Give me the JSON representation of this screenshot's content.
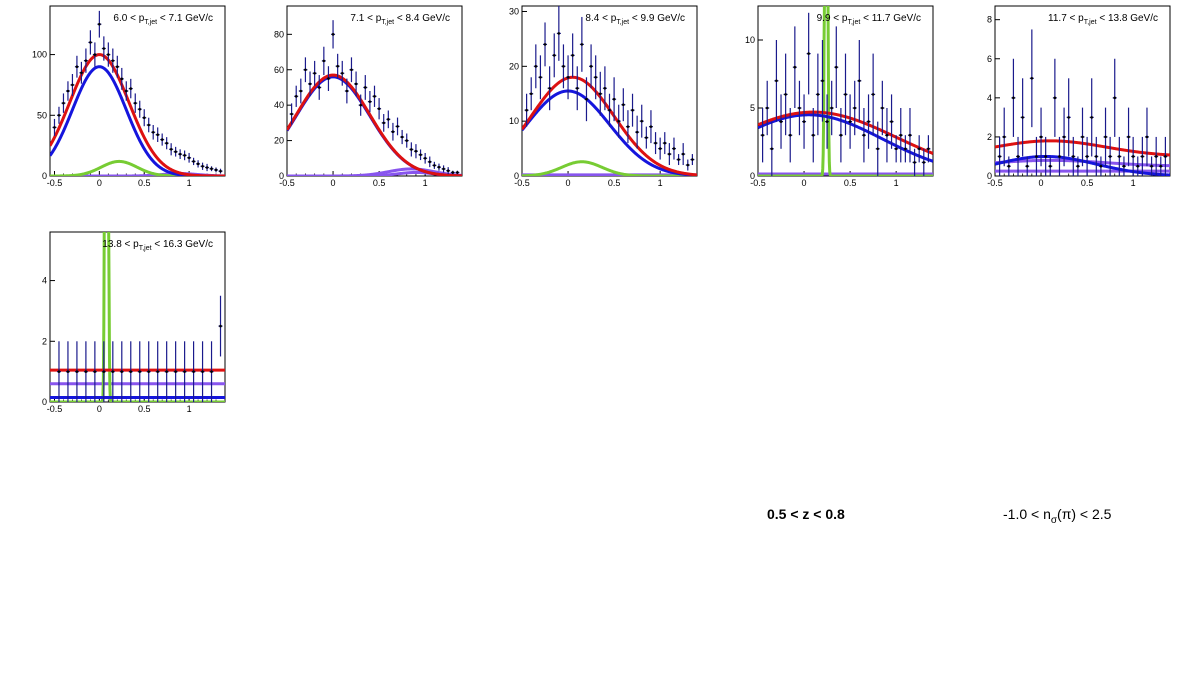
{
  "colors": {
    "data": "#1a1a8c",
    "total": "#dd1111",
    "blue": "#1515dd",
    "green": "#77cc33",
    "violet": "#8855ee",
    "axis": "#000000"
  },
  "footer": {
    "z_cut": "0.5 < z < 0.8",
    "nsigma_pre": "-1.0 < n",
    "nsigma_sub": "σ",
    "nsigma_post": "(π) < 2.5"
  },
  "chart_data": [
    {
      "type": "line",
      "title": {
        "pre": "6.0 < p",
        "sub": "T,jet",
        "post": " < 7.1 GeV/c"
      },
      "xlim": [
        -0.55,
        1.4
      ],
      "ylim": [
        0,
        140
      ],
      "xticks": [
        -0.5,
        0,
        0.5,
        1
      ],
      "xtick_labels": [
        "-0.5",
        "0",
        "0.5",
        "1"
      ],
      "yticks": [
        0,
        50,
        100
      ],
      "ytick_labels": [
        "0",
        "50",
        "100"
      ],
      "series": [
        {
          "role": "data",
          "x": [
            -0.5,
            -0.45,
            -0.4,
            -0.35,
            -0.3,
            -0.25,
            -0.2,
            -0.15,
            -0.1,
            -0.05,
            0,
            0.05,
            0.1,
            0.15,
            0.2,
            0.25,
            0.3,
            0.35,
            0.4,
            0.45,
            0.5,
            0.55,
            0.6,
            0.65,
            0.7,
            0.75,
            0.8,
            0.85,
            0.9,
            0.95,
            1,
            1.05,
            1.1,
            1.15,
            1.2,
            1.25,
            1.3,
            1.35
          ],
          "y": [
            40,
            50,
            60,
            70,
            75,
            90,
            85,
            95,
            110,
            100,
            125,
            105,
            100,
            95,
            90,
            80,
            70,
            72,
            60,
            55,
            48,
            42,
            36,
            34,
            30,
            27,
            22,
            20,
            18,
            17,
            15,
            12,
            10,
            8,
            7,
            6,
            5,
            4
          ],
          "err": [
            7,
            7,
            8,
            8,
            9,
            9,
            9,
            10,
            10,
            10,
            11,
            10,
            10,
            10,
            9,
            9,
            8,
            8,
            8,
            7,
            7,
            6,
            6,
            6,
            5,
            5,
            5,
            4,
            4,
            4,
            4,
            3,
            3,
            3,
            3,
            2,
            2,
            2
          ]
        },
        {
          "role": "total",
          "gauss": [
            [
              100,
              0.0,
              0.33
            ]
          ],
          "const": 0
        },
        {
          "role": "blue",
          "gauss": [
            [
              90,
              0.0,
              0.3
            ]
          ],
          "const": 0
        },
        {
          "role": "green",
          "gauss": [
            [
              12,
              0.22,
              0.2
            ]
          ],
          "const": 0
        },
        {
          "role": "violet",
          "gauss": [
            [
              2,
              0.9,
              0.2
            ]
          ],
          "const": 0
        }
      ]
    },
    {
      "type": "line",
      "title": {
        "pre": "7.1 < p",
        "sub": "T,jet",
        "post": " < 8.4 GeV/c"
      },
      "xlim": [
        -0.5,
        1.4
      ],
      "ylim": [
        0,
        96
      ],
      "xticks": [
        -0.5,
        0,
        0.5,
        1
      ],
      "xtick_labels": [
        "-0.5",
        "0",
        "0.5",
        "1"
      ],
      "yticks": [
        0,
        20,
        40,
        60,
        80
      ],
      "ytick_labels": [
        "0",
        "20",
        "40",
        "60",
        "80"
      ],
      "series": [
        {
          "role": "data",
          "x": [
            -0.45,
            -0.4,
            -0.35,
            -0.3,
            -0.25,
            -0.2,
            -0.15,
            -0.1,
            -0.05,
            0,
            0.05,
            0.1,
            0.15,
            0.2,
            0.25,
            0.3,
            0.35,
            0.4,
            0.45,
            0.5,
            0.55,
            0.6,
            0.65,
            0.7,
            0.75,
            0.8,
            0.85,
            0.9,
            0.95,
            1,
            1.05,
            1.1,
            1.15,
            1.2,
            1.25,
            1.3,
            1.35
          ],
          "y": [
            35,
            45,
            48,
            60,
            52,
            58,
            50,
            65,
            55,
            80,
            62,
            58,
            48,
            60,
            52,
            40,
            50,
            42,
            45,
            38,
            30,
            32,
            25,
            28,
            22,
            20,
            15,
            14,
            12,
            10,
            8,
            6,
            5,
            4,
            3,
            2,
            2
          ],
          "err": [
            6,
            6,
            7,
            7,
            7,
            7,
            7,
            8,
            7,
            8,
            7,
            7,
            7,
            7,
            7,
            6,
            7,
            6,
            6,
            6,
            5,
            5,
            5,
            5,
            4,
            4,
            4,
            4,
            3,
            3,
            3,
            2,
            2,
            2,
            2,
            1,
            1
          ]
        },
        {
          "role": "total",
          "gauss": [
            [
              57,
              0.0,
              0.4
            ]
          ],
          "const": 0
        },
        {
          "role": "blue",
          "gauss": [
            [
              56,
              0.0,
              0.4
            ]
          ],
          "const": 0
        },
        {
          "role": "violet",
          "gauss": [
            [
              4,
              0.85,
              0.25
            ]
          ],
          "const": 0
        },
        {
          "role": "violet2",
          "gauss": [
            [
              2,
              0.9,
              0.2
            ]
          ],
          "const": 0
        }
      ]
    },
    {
      "type": "line",
      "title": {
        "pre": "8.4 < p",
        "sub": "T,jet",
        "post": " < 9.9 GeV/c"
      },
      "xlim": [
        -0.5,
        1.4
      ],
      "ylim": [
        0,
        31
      ],
      "xticks": [
        -0.5,
        0,
        0.5,
        1
      ],
      "xtick_labels": [
        "-0.5",
        "0",
        "0.5",
        "1"
      ],
      "yticks": [
        0,
        10,
        20,
        30
      ],
      "ytick_labels": [
        "0",
        "10",
        "20",
        "30"
      ],
      "series": [
        {
          "role": "data",
          "x": [
            -0.45,
            -0.4,
            -0.35,
            -0.3,
            -0.25,
            -0.2,
            -0.15,
            -0.1,
            -0.05,
            0,
            0.05,
            0.1,
            0.15,
            0.2,
            0.25,
            0.3,
            0.35,
            0.4,
            0.45,
            0.5,
            0.55,
            0.6,
            0.65,
            0.7,
            0.75,
            0.8,
            0.85,
            0.9,
            0.95,
            1,
            1.05,
            1.1,
            1.15,
            1.2,
            1.25,
            1.3,
            1.35
          ],
          "y": [
            12,
            15,
            20,
            18,
            24,
            16,
            22,
            26,
            20,
            18,
            22,
            16,
            24,
            14,
            20,
            18,
            15,
            16,
            12,
            14,
            10,
            13,
            9,
            12,
            8,
            10,
            7,
            9,
            6,
            5,
            6,
            4,
            5,
            3,
            4,
            2,
            3
          ],
          "err": [
            3,
            3,
            4,
            4,
            4,
            4,
            4,
            5,
            4,
            4,
            4,
            4,
            5,
            4,
            4,
            4,
            4,
            4,
            3,
            4,
            3,
            3,
            3,
            3,
            3,
            3,
            2,
            3,
            2,
            2,
            2,
            2,
            2,
            1,
            2,
            1,
            1
          ]
        },
        {
          "role": "total",
          "gauss": [
            [
              18,
              0.05,
              0.45
            ]
          ],
          "const": 0
        },
        {
          "role": "blue",
          "gauss": [
            [
              15.5,
              0.0,
              0.45
            ]
          ],
          "const": 0
        },
        {
          "role": "green",
          "gauss": [
            [
              2.6,
              0.15,
              0.22
            ]
          ],
          "const": 0
        },
        {
          "role": "violet",
          "gauss": [],
          "const": 0.2
        }
      ]
    },
    {
      "type": "line",
      "title": {
        "pre": "9.9 < p",
        "sub": "T,jet",
        "post": " < 11.7 GeV/c"
      },
      "xlim": [
        -0.5,
        1.4
      ],
      "ylim": [
        0,
        12.5
      ],
      "xticks": [
        -0.5,
        0,
        0.5,
        1
      ],
      "xtick_labels": [
        "-0.5",
        "0",
        "0.5",
        "1"
      ],
      "yticks": [
        0,
        5,
        10
      ],
      "ytick_labels": [
        "0",
        "5",
        "10"
      ],
      "series": [
        {
          "role": "data",
          "x": [
            -0.45,
            -0.4,
            -0.35,
            -0.3,
            -0.25,
            -0.2,
            -0.15,
            -0.1,
            -0.05,
            0,
            0.05,
            0.1,
            0.15,
            0.2,
            0.25,
            0.3,
            0.35,
            0.4,
            0.45,
            0.5,
            0.55,
            0.6,
            0.65,
            0.7,
            0.75,
            0.8,
            0.85,
            0.9,
            0.95,
            1,
            1.05,
            1.1,
            1.15,
            1.2,
            1.25,
            1.3,
            1.35
          ],
          "y": [
            3,
            5,
            2,
            7,
            4,
            6,
            3,
            8,
            5,
            4,
            9,
            3,
            6,
            7,
            4,
            5,
            8,
            3,
            6,
            4,
            5,
            7,
            3,
            4,
            6,
            2,
            5,
            3,
            4,
            2,
            3,
            2,
            3,
            1,
            2,
            1,
            2
          ],
          "err": [
            2,
            2,
            2,
            3,
            2,
            3,
            2,
            3,
            2,
            2,
            3,
            2,
            3,
            3,
            2,
            2,
            3,
            2,
            3,
            2,
            2,
            3,
            2,
            2,
            3,
            2,
            2,
            2,
            2,
            1,
            2,
            1,
            2,
            1,
            1,
            1,
            1
          ]
        },
        {
          "role": "total",
          "gauss": [
            [
              4.7,
              0.1,
              0.9
            ]
          ],
          "const": 0
        },
        {
          "role": "blue",
          "gauss": [
            [
              4.5,
              0.05,
              0.8
            ]
          ],
          "const": 0
        },
        {
          "role": "green",
          "gauss": [
            [
              60,
              0.24,
              0.012
            ]
          ],
          "const": 0
        },
        {
          "role": "violet",
          "gauss": [],
          "const": 0.15
        }
      ]
    },
    {
      "type": "line",
      "title": {
        "pre": "11.7 < p",
        "sub": "T,jet",
        "post": " < 13.8 GeV/c"
      },
      "xlim": [
        -0.5,
        1.4
      ],
      "ylim": [
        0,
        8.7
      ],
      "xticks": [
        -0.5,
        0,
        0.5,
        1
      ],
      "xtick_labels": [
        "-0.5",
        "0",
        "0.5",
        "1"
      ],
      "yticks": [
        0,
        2,
        4,
        6,
        8
      ],
      "ytick_labels": [
        "0",
        "2",
        "4",
        "6",
        "8"
      ],
      "series": [
        {
          "role": "data",
          "x": [
            -0.45,
            -0.4,
            -0.35,
            -0.3,
            -0.25,
            -0.2,
            -0.15,
            -0.1,
            -0.05,
            0,
            0.05,
            0.1,
            0.15,
            0.2,
            0.25,
            0.3,
            0.35,
            0.4,
            0.45,
            0.5,
            0.55,
            0.6,
            0.65,
            0.7,
            0.75,
            0.8,
            0.85,
            0.9,
            0.95,
            1,
            1.05,
            1.1,
            1.15,
            1.2,
            1.25,
            1.3,
            1.35
          ],
          "y": [
            1,
            2,
            0.5,
            4,
            1,
            3,
            0.5,
            5,
            1,
            2,
            1,
            0.5,
            4,
            1,
            2,
            3,
            1,
            0.5,
            2,
            1,
            3,
            1,
            0.5,
            2,
            1,
            4,
            1,
            0.5,
            2,
            1,
            0.5,
            1,
            2,
            0.5,
            1,
            0.5,
            1
          ],
          "err": [
            1,
            1.5,
            0.5,
            2,
            1,
            2,
            0.5,
            2.5,
            1,
            1.5,
            1,
            0.5,
            2,
            1,
            1.5,
            2,
            1,
            0.5,
            1.5,
            1,
            2,
            1,
            0.5,
            1.5,
            1,
            2,
            1,
            0.5,
            1.5,
            1,
            0.5,
            1,
            1.5,
            0.5,
            1,
            0.5,
            1
          ]
        },
        {
          "role": "total",
          "gauss": [
            [
              0.8,
              0.1,
              0.6
            ]
          ],
          "const": 1.0
        },
        {
          "role": "blue",
          "gauss": [
            [
              1.0,
              0.05,
              0.55
            ]
          ],
          "const": 0
        },
        {
          "role": "violet",
          "gauss": [
            [
              0.3,
              0.1,
              0.6
            ]
          ],
          "const": 0.5
        },
        {
          "role": "violet2",
          "gauss": [],
          "const": 0.25
        }
      ]
    },
    {
      "type": "line",
      "title": {
        "pre": "13.8 < p",
        "sub": "T,jet",
        "post": " < 16.3 GeV/c"
      },
      "xlim": [
        -0.55,
        1.4
      ],
      "ylim": [
        0,
        5.6
      ],
      "xticks": [
        -0.5,
        0,
        0.5,
        1
      ],
      "xtick_labels": [
        "-0.5",
        "0",
        "0.5",
        "1"
      ],
      "yticks": [
        0,
        2,
        4
      ],
      "ytick_labels": [
        "0",
        "2",
        "4"
      ],
      "series": [
        {
          "role": "data",
          "x": [
            -0.45,
            -0.35,
            -0.25,
            -0.15,
            -0.05,
            0.05,
            0.15,
            0.25,
            0.35,
            0.45,
            0.55,
            0.65,
            0.75,
            0.85,
            0.95,
            1.05,
            1.15,
            1.25,
            1.35
          ],
          "y": [
            1,
            1,
            1,
            1,
            1,
            1,
            1,
            1,
            1,
            1,
            1,
            1,
            1,
            1,
            1,
            1,
            1,
            1,
            2.5
          ],
          "err": [
            1,
            1,
            1,
            1,
            1,
            1,
            1,
            1,
            1,
            1,
            1,
            1,
            1,
            1,
            1,
            1,
            1,
            1,
            1
          ]
        },
        {
          "role": "total",
          "gauss": [],
          "const": 1.05
        },
        {
          "role": "violet",
          "gauss": [],
          "const": 0.6
        },
        {
          "role": "blue",
          "gauss": [],
          "const": 0.15
        },
        {
          "role": "green",
          "gauss": [
            [
              60,
              0.08,
              0.012
            ]
          ],
          "const": 0
        }
      ]
    }
  ]
}
